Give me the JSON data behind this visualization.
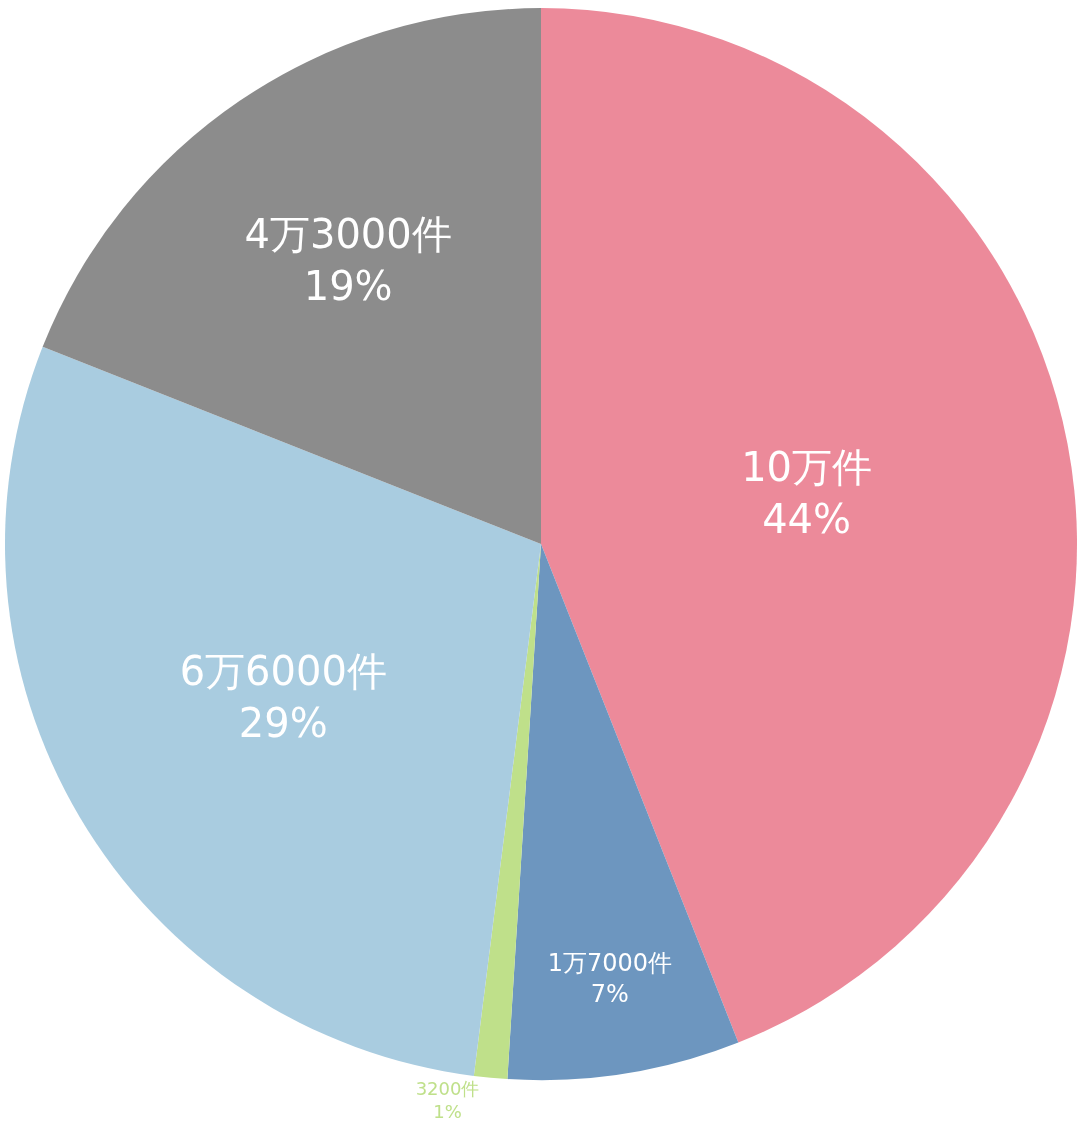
{
  "chart_data": {
    "type": "pie",
    "categories": [
      null,
      null,
      null,
      null,
      null
    ],
    "values": [
      44,
      7,
      1,
      29,
      19
    ],
    "colors": [
      "#ec8a9a",
      "#6d96bf",
      "#bfe08a",
      "#a9cce0",
      "#8c8c8c"
    ],
    "value_labels": [
      "10万件\n44%",
      "1万7000件\n7%",
      "3200件\n1%",
      "6万6000件\n29%",
      "4万3000件\n19%"
    ],
    "legend": false
  }
}
